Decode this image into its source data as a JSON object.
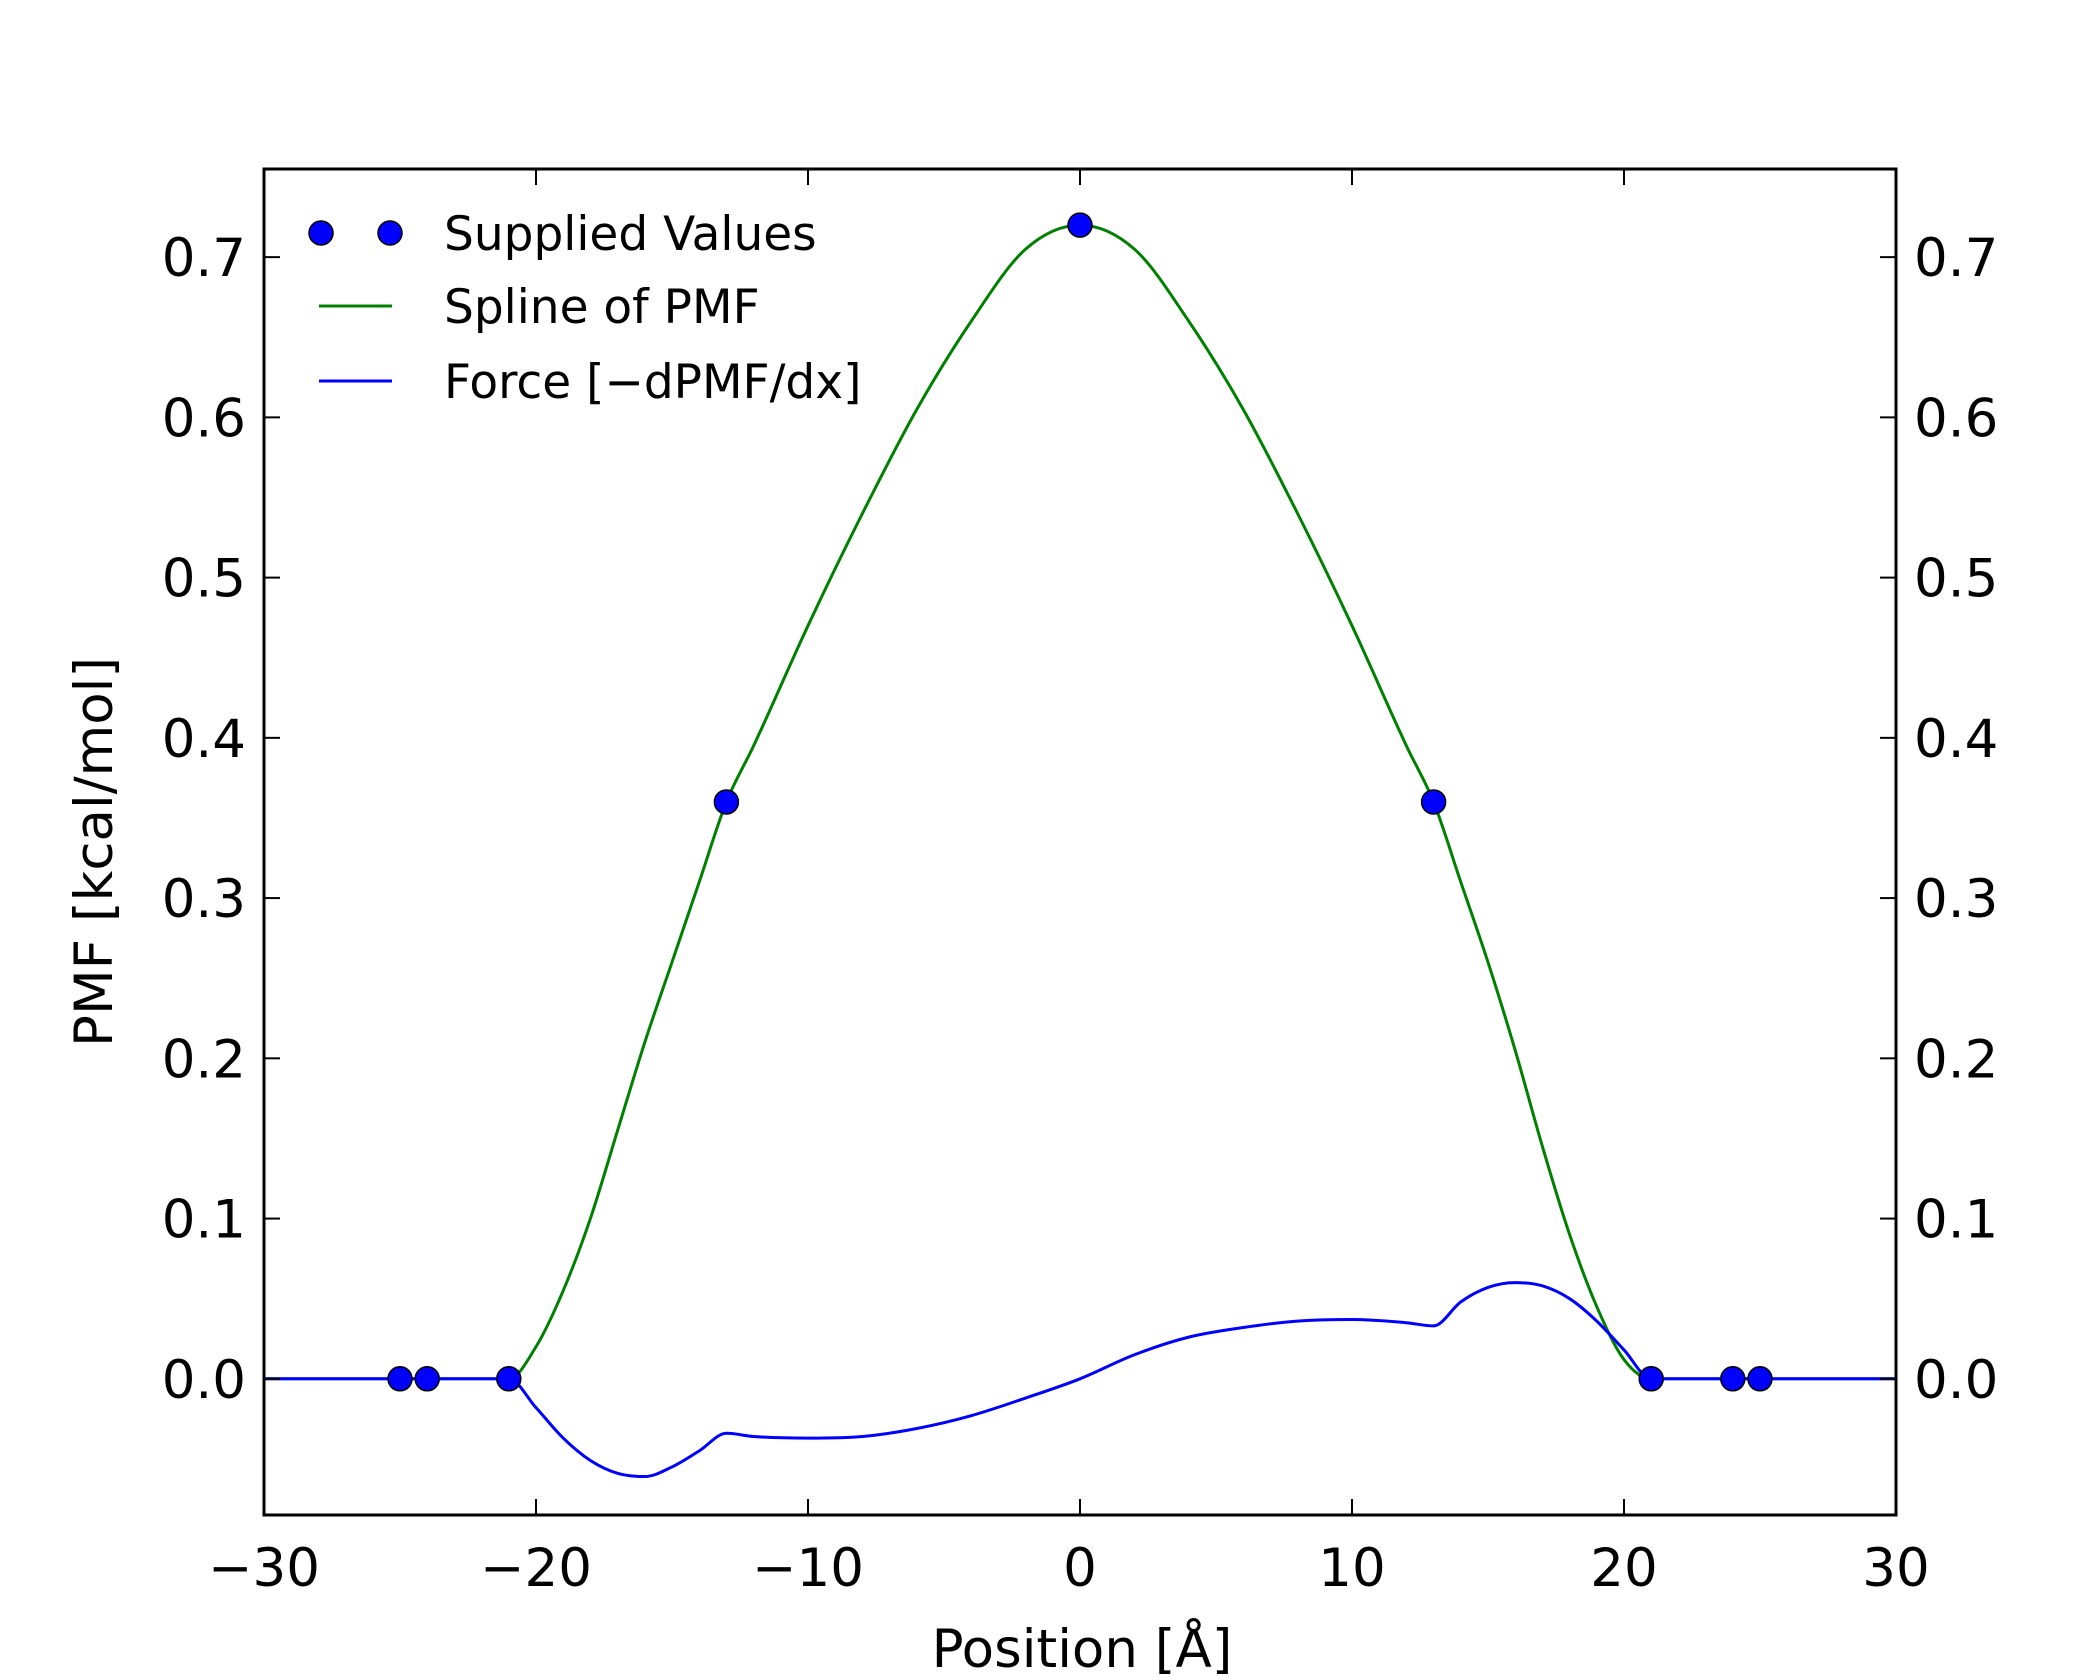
{
  "chart_data": {
    "type": "line",
    "xlabel": "Position [Å]",
    "ylabel": "PMF [kcal/mol]",
    "xlim": [
      -30,
      30
    ],
    "ylim": [
      -0.085,
      0.755
    ],
    "x_ticks": [
      -30,
      -20,
      -10,
      0,
      10,
      20,
      30
    ],
    "x_tick_labels": [
      "−30",
      "−20",
      "−10",
      "0",
      "10",
      "20",
      "30"
    ],
    "y_ticks": [
      0.0,
      0.1,
      0.2,
      0.3,
      0.4,
      0.5,
      0.6,
      0.7
    ],
    "y_tick_labels": [
      "0.0",
      "0.1",
      "0.2",
      "0.3",
      "0.4",
      "0.5",
      "0.6",
      "0.7"
    ],
    "right_axis_duplicate": true,
    "grid": false,
    "legend_position": "top-left",
    "legend": [
      {
        "label": "Supplied Values",
        "style": "markers",
        "color": "#0000ff"
      },
      {
        "label": "Spline of PMF",
        "style": "line",
        "color": "#008000"
      },
      {
        "label": "Force [−dPMF/dx]",
        "style": "line",
        "color": "#0000ff"
      }
    ],
    "series": [
      {
        "name": "Supplied Values",
        "kind": "scatter",
        "color": "#0000ff",
        "x": [
          -25,
          -24,
          -21,
          -13,
          0,
          13,
          21,
          24,
          25
        ],
        "y": [
          0.0,
          0.0,
          0.0,
          0.36,
          0.72,
          0.36,
          0.0,
          0.0,
          0.0
        ]
      },
      {
        "name": "Spline of PMF",
        "kind": "line",
        "color": "#008000",
        "x": [
          -30,
          -21,
          -20,
          -19,
          -18,
          -17,
          -16,
          -15,
          -14,
          -13,
          -12,
          -10,
          -8,
          -6,
          -4,
          -2,
          0,
          2,
          4,
          6,
          8,
          10,
          12,
          13,
          14,
          15,
          16,
          17,
          18,
          19,
          20,
          21,
          30
        ],
        "y": [
          0.0,
          0.0,
          0.02,
          0.055,
          0.1,
          0.155,
          0.21,
          0.26,
          0.31,
          0.36,
          0.395,
          0.47,
          0.54,
          0.605,
          0.66,
          0.705,
          0.72,
          0.705,
          0.66,
          0.605,
          0.54,
          0.47,
          0.395,
          0.36,
          0.31,
          0.26,
          0.205,
          0.145,
          0.09,
          0.045,
          0.012,
          0.0,
          0.0
        ]
      },
      {
        "name": "Force [−dPMF/dx]",
        "kind": "line",
        "color": "#0000ff",
        "x": [
          -30,
          -21,
          -20,
          -19,
          -18,
          -17,
          -16,
          -15,
          -14,
          -13,
          -12,
          -10,
          -8,
          -6,
          -4,
          -2,
          0,
          2,
          4,
          6,
          8,
          10,
          12,
          13,
          14,
          15,
          16,
          17,
          18,
          19,
          20,
          21,
          30
        ],
        "y": [
          0.0,
          0.0,
          -0.018,
          -0.037,
          -0.051,
          -0.059,
          -0.061,
          -0.055,
          -0.045,
          -0.034,
          -0.036,
          -0.037,
          -0.036,
          -0.031,
          -0.023,
          -0.012,
          0.0,
          0.015,
          0.026,
          0.032,
          0.036,
          0.037,
          0.035,
          0.033,
          0.048,
          0.057,
          0.06,
          0.058,
          0.05,
          0.036,
          0.018,
          0.0,
          0.0
        ]
      }
    ]
  }
}
